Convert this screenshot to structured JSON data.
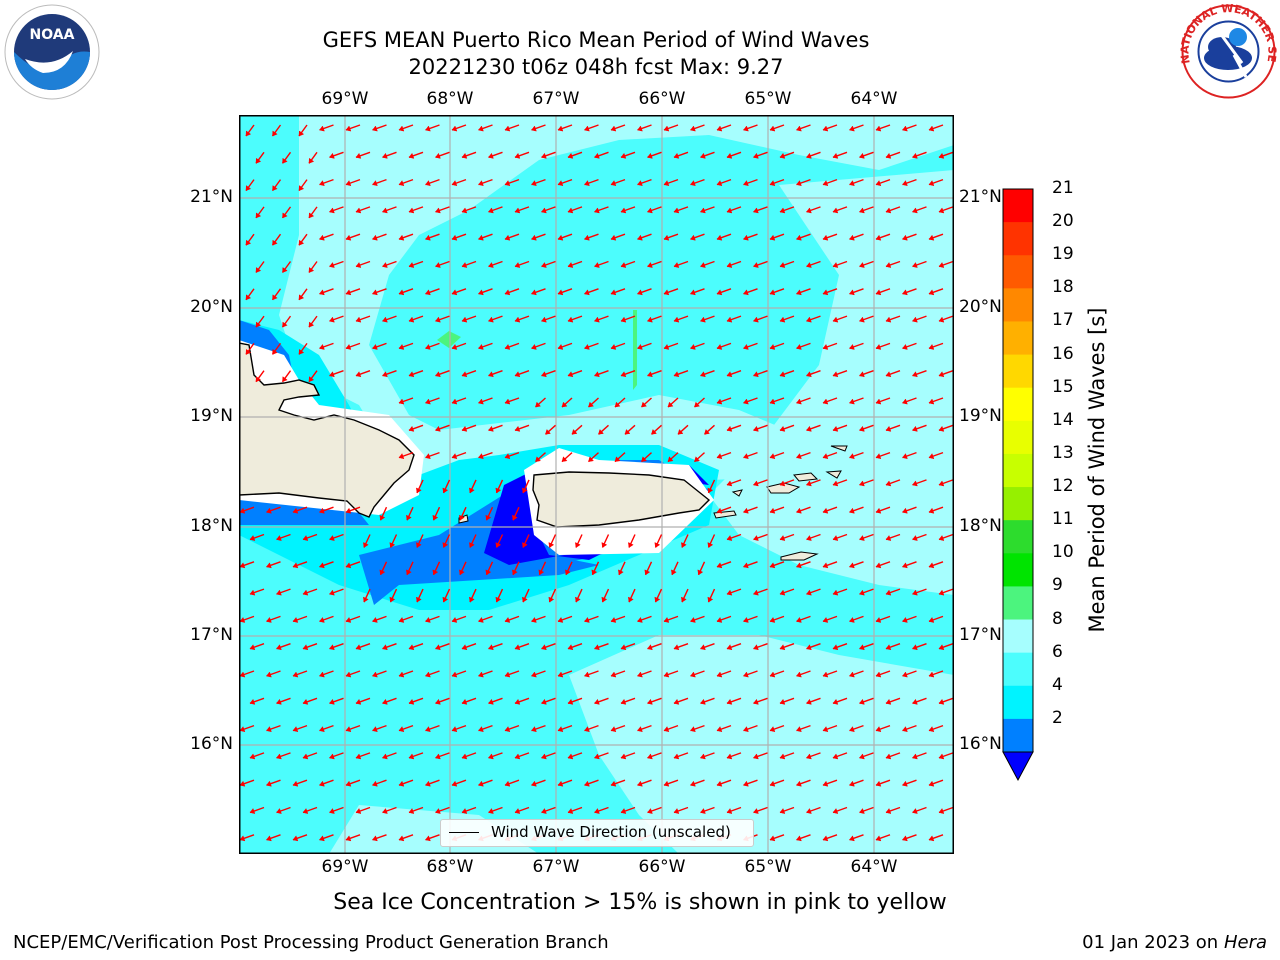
{
  "title": {
    "line1": "GEFS MEAN Puerto Rico Mean Period of Wind Waves",
    "line2": "20221230 t06z 048h fcst   Max: 9.27"
  },
  "map": {
    "lon_labels": [
      "69°W",
      "68°W",
      "67°W",
      "66°W",
      "65°W",
      "64°W"
    ],
    "lat_labels": [
      "21°N",
      "20°N",
      "19°N",
      "18°N",
      "17°N",
      "16°N"
    ],
    "legend_label": "Wind Wave Direction (unscaled)",
    "arrow_color": "#ff0000",
    "land_color": "#efecdc"
  },
  "colorbar": {
    "label": "Mean Period of Wind Waves [s]",
    "ticks": [
      "21",
      "20",
      "19",
      "18",
      "17",
      "16",
      "15",
      "14",
      "13",
      "12",
      "11",
      "10",
      "9",
      "8",
      "6",
      "4",
      "2"
    ],
    "colors_top_down": [
      "#ff0000",
      "#ff3300",
      "#ff5a00",
      "#ff8800",
      "#ffb000",
      "#ffd800",
      "#ffff00",
      "#e8ff00",
      "#c8ff00",
      "#96f000",
      "#2ddc2d",
      "#00e400",
      "#4cf47e",
      "#a6fefe",
      "#4cfdfd",
      "#00f3ff",
      "#0080ff"
    ],
    "extend_color": "#0000ff"
  },
  "subtitle": "Sea Ice Concentration > 15% is shown in pink to yellow",
  "footer": {
    "left": "NCEP/EMC/Verification Post Processing Product Generation Branch",
    "date": "01 Jan 2023 on ",
    "host": "Hera"
  },
  "logos": {
    "left_text": "NOAA",
    "right_text": "NATIONAL WEATHER SERVICE"
  }
}
